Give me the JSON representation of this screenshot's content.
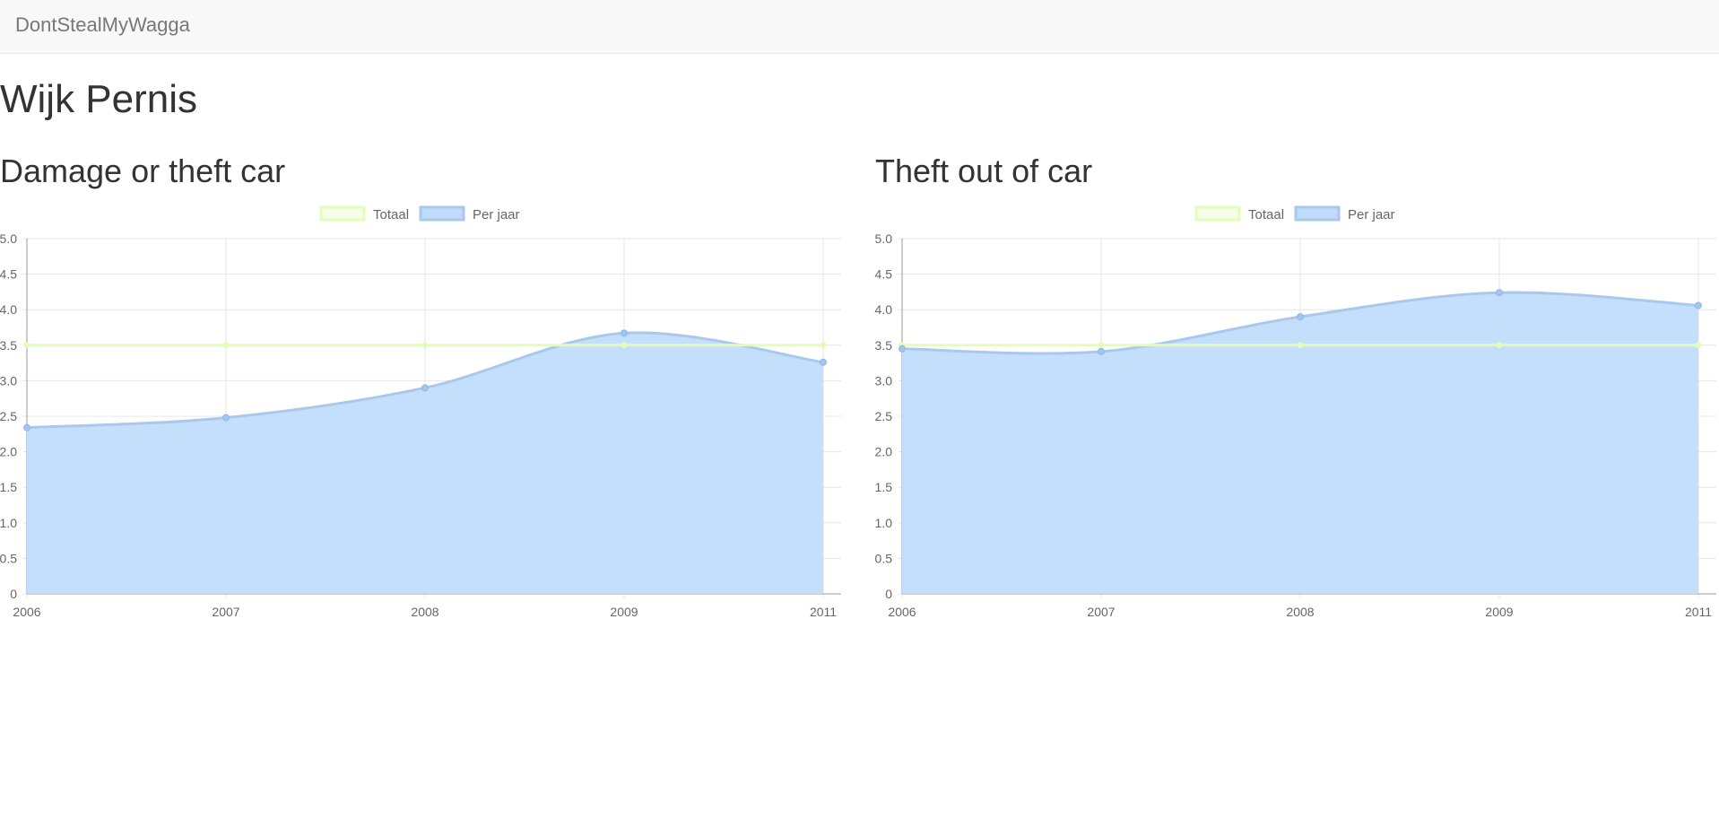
{
  "navbar": {
    "brand": "DontStealMyWagga"
  },
  "page": {
    "title": "Wijk Pernis"
  },
  "colors": {
    "total_line": "#e3fcb8",
    "per_year_fill": "#c0ddfc",
    "per_year_line": "#a9c8ec",
    "grid": "#e6e6e6",
    "axis": "#999999"
  },
  "charts": [
    {
      "title": "Damage or theft car"
    },
    {
      "title": "Theft out of car"
    }
  ],
  "chart_data": [
    {
      "type": "area",
      "title": "Damage or theft car",
      "categories": [
        "2006",
        "2007",
        "2008",
        "2009",
        "2011"
      ],
      "series": [
        {
          "name": "Totaal",
          "kind": "line",
          "values": [
            3.5,
            3.5,
            3.5,
            3.5,
            3.5
          ]
        },
        {
          "name": "Per jaar",
          "kind": "area",
          "values": [
            2.34,
            2.48,
            2.9,
            3.67,
            3.26
          ]
        }
      ],
      "ylim": [
        0,
        5
      ],
      "yticks": [
        "0",
        "0.5",
        "1.0",
        "1.5",
        "2.0",
        "2.5",
        "3.0",
        "3.5",
        "4.0",
        "4.5",
        "5.0"
      ],
      "grid": true,
      "legend": "top-center"
    },
    {
      "type": "area",
      "title": "Theft out of car",
      "categories": [
        "2006",
        "2007",
        "2008",
        "2009",
        "2011"
      ],
      "series": [
        {
          "name": "Totaal",
          "kind": "line",
          "values": [
            3.5,
            3.5,
            3.5,
            3.5,
            3.5
          ]
        },
        {
          "name": "Per jaar",
          "kind": "area",
          "values": [
            3.45,
            3.41,
            3.9,
            4.24,
            4.06
          ]
        }
      ],
      "ylim": [
        0,
        5
      ],
      "yticks": [
        "0",
        "0.5",
        "1.0",
        "1.5",
        "2.0",
        "2.5",
        "3.0",
        "3.5",
        "4.0",
        "4.5",
        "5.0"
      ],
      "grid": true,
      "legend": "top-center"
    }
  ]
}
